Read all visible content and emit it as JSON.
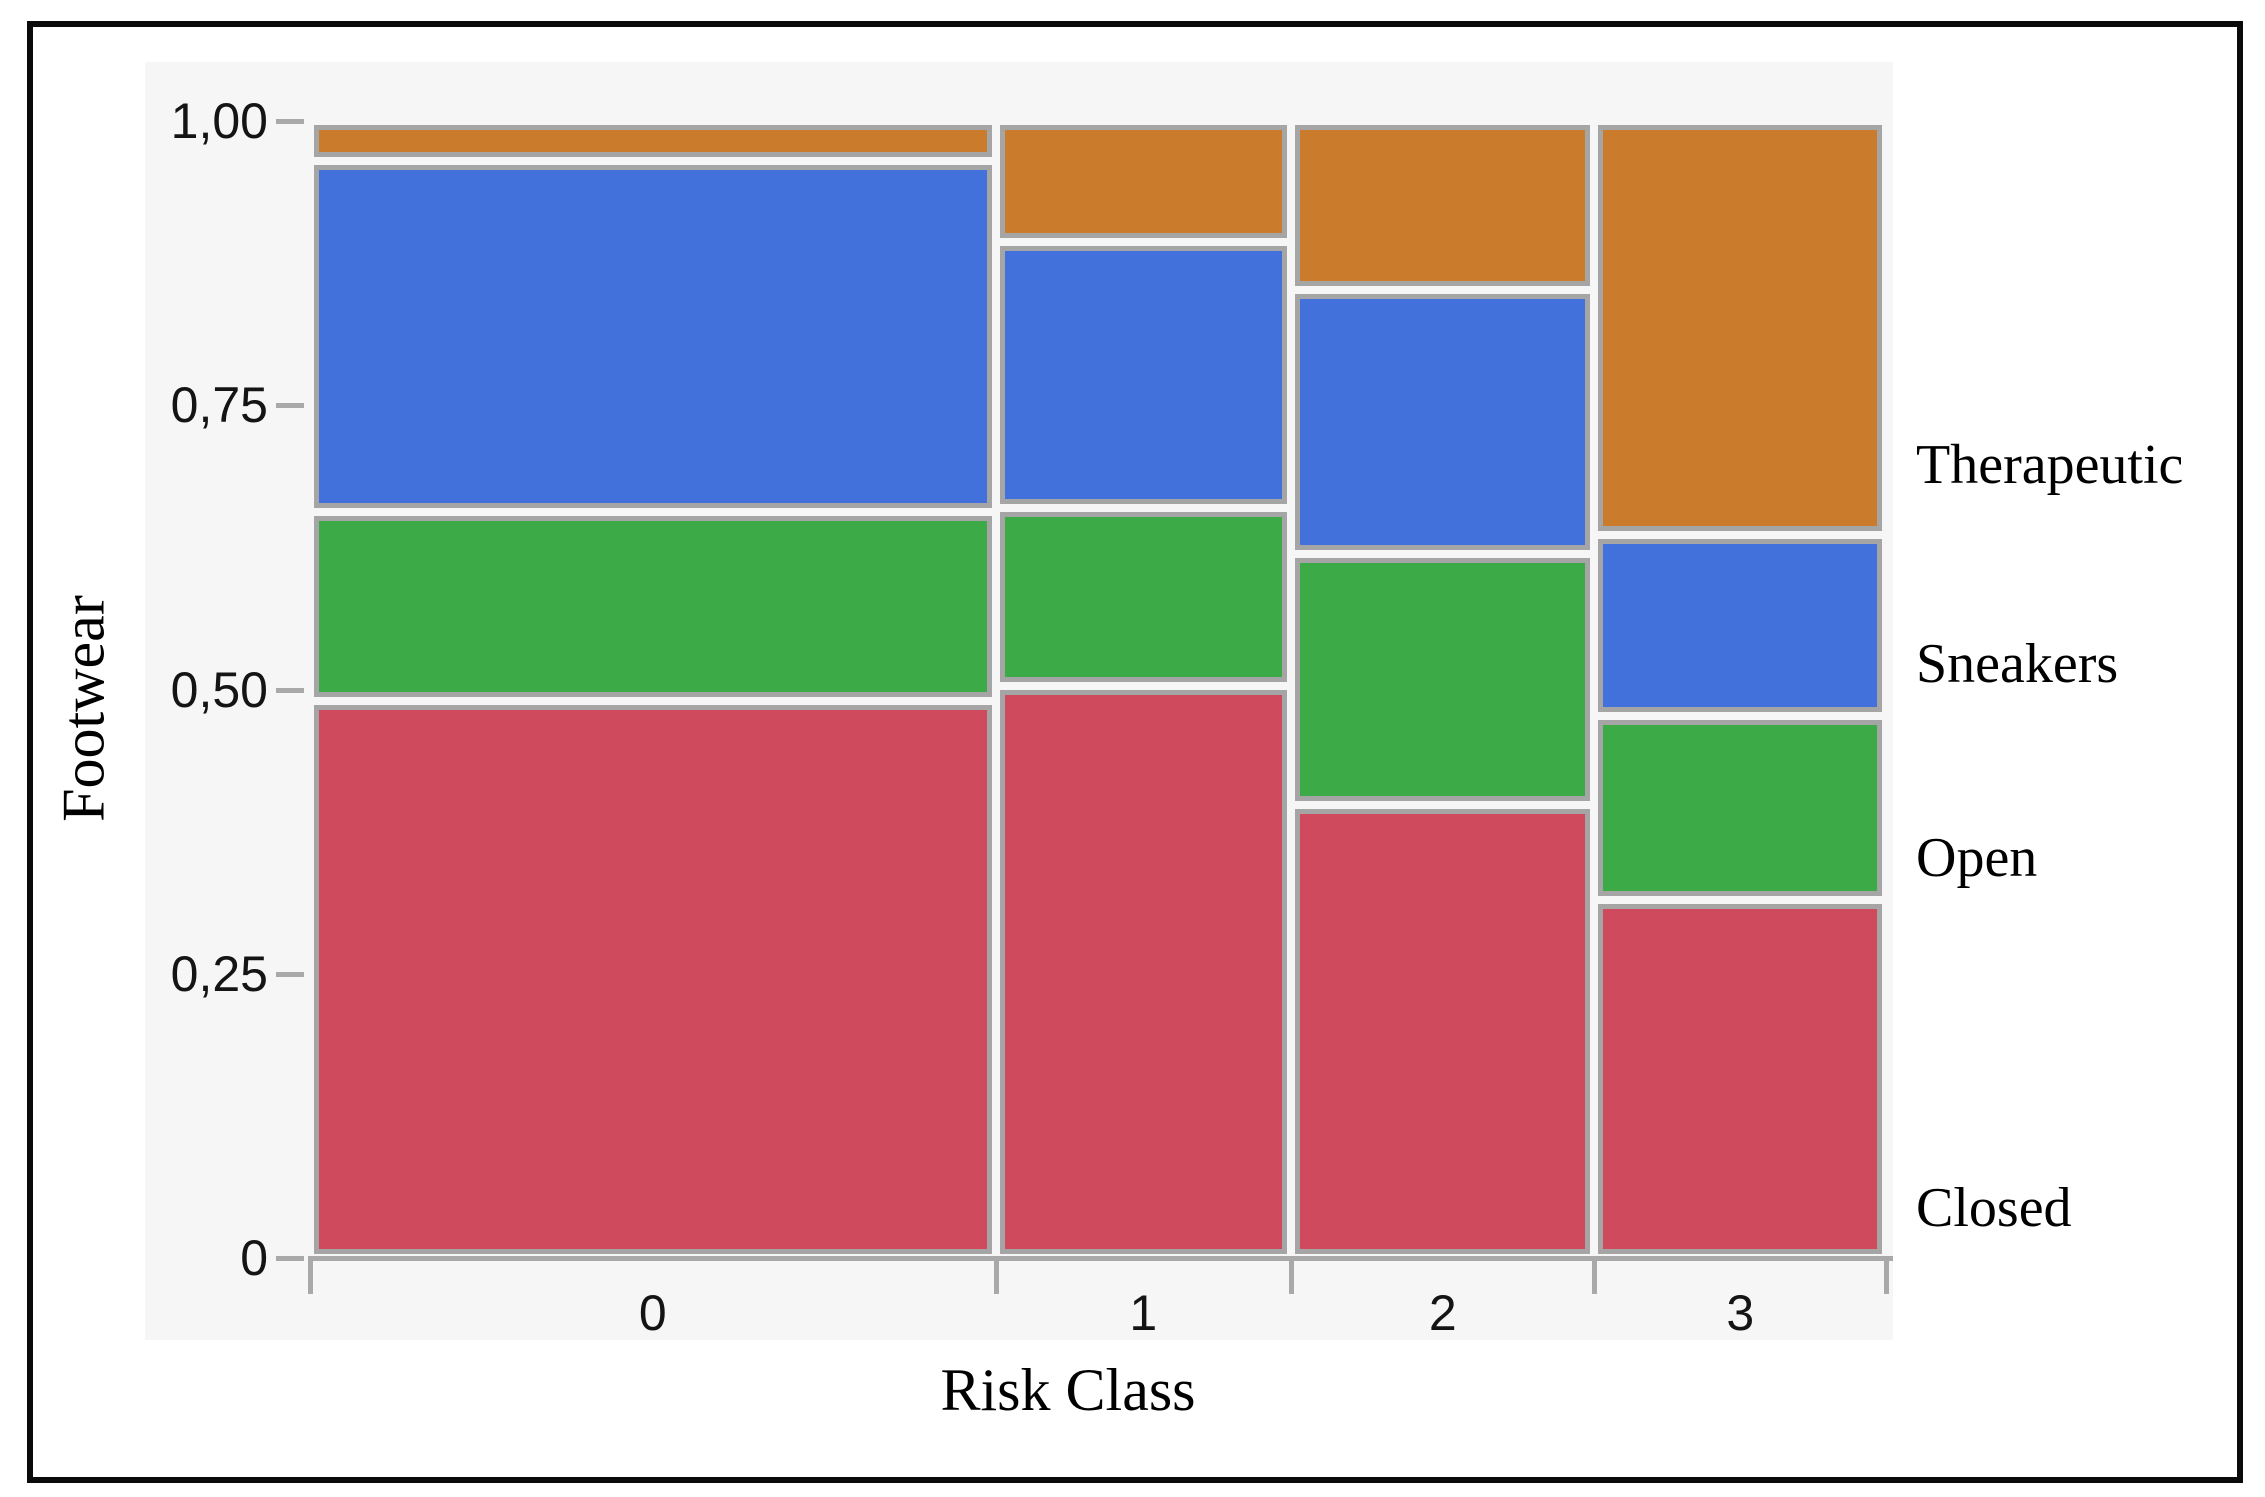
{
  "chart_data": {
    "type": "mosaic",
    "title": "",
    "xlabel": "Risk Class",
    "ylabel": "Footwear",
    "x_categories": [
      "0",
      "1",
      "2",
      "3"
    ],
    "y_categories_bottom_to_top": [
      "Closed",
      "Open",
      "Sneakers",
      "Therapeutic"
    ],
    "columns": [
      {
        "label": "0",
        "width_fraction": 0.435,
        "proportions": {
          "Closed": 0.49,
          "Open": 0.166,
          "Sneakers": 0.309,
          "Therapeutic": 0.035
        }
      },
      {
        "label": "1",
        "width_fraction": 0.1875,
        "proportions": {
          "Closed": 0.503,
          "Open": 0.157,
          "Sneakers": 0.234,
          "Therapeutic": 0.106
        }
      },
      {
        "label": "2",
        "width_fraction": 0.1925,
        "proportions": {
          "Closed": 0.398,
          "Open": 0.221,
          "Sneakers": 0.232,
          "Therapeutic": 0.149
        }
      },
      {
        "label": "3",
        "width_fraction": 0.185,
        "proportions": {
          "Closed": 0.315,
          "Open": 0.162,
          "Sneakers": 0.159,
          "Therapeutic": 0.364
        }
      }
    ],
    "y_axis": {
      "min": 0,
      "max": 1,
      "tick_values": [
        0,
        0.25,
        0.5,
        0.75,
        1
      ],
      "tick_labels": [
        "0",
        "0,25",
        "0,50",
        "0,75",
        "1,00"
      ]
    },
    "colors": {
      "Closed": "#CF4A5C",
      "Open": "#3BAA47",
      "Sneakers": "#4371DB",
      "Therapeutic": "#CB7B2C"
    },
    "segment_border_color": "#A5A5A5",
    "axis_color": "#A9A9A9",
    "plot_background": "#F6F6F6",
    "grid": false,
    "legend_position": "right",
    "legend": [
      {
        "label": "Therapeutic",
        "y_fraction_from_top": 0.3026
      },
      {
        "label": "Sneakers",
        "y_fraction_from_top": 0.4776
      },
      {
        "label": "Open",
        "y_fraction_from_top": 0.6482
      },
      {
        "label": "Closed",
        "y_fraction_from_top": 0.956
      }
    ]
  }
}
